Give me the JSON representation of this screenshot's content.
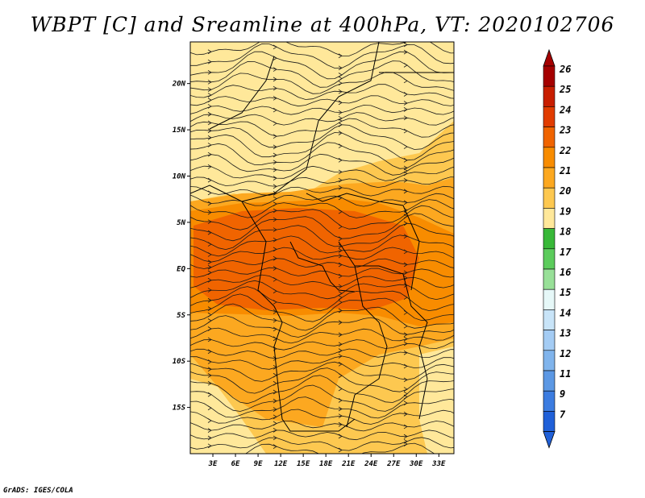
{
  "title": "WBPT [C] and Sreamline at 400hPa, VT: 2020102706",
  "credit": "GrADS: IGES/COLA",
  "map": {
    "lat_ticks": [
      "20N",
      "15N",
      "10N",
      "5N",
      "EQ",
      "5S",
      "10S",
      "15S"
    ],
    "lat_values": [
      20,
      15,
      10,
      5,
      0,
      -5,
      -10,
      -15
    ],
    "lon_ticks": [
      "3E",
      "6E",
      "9E",
      "12E",
      "15E",
      "18E",
      "21E",
      "24E",
      "27E",
      "30E",
      "33E"
    ],
    "lon_values": [
      3,
      6,
      9,
      12,
      15,
      18,
      21,
      24,
      27,
      30,
      33
    ],
    "lat_range": [
      -20,
      24.5
    ],
    "lon_range": [
      0,
      35
    ]
  },
  "colorbar": {
    "labels": [
      "26",
      "25",
      "24",
      "23",
      "22",
      "21",
      "20",
      "19",
      "18",
      "17",
      "16",
      "15",
      "14",
      "13",
      "12",
      "11",
      "9",
      "7"
    ],
    "colors": [
      "#a50000",
      "#c81e00",
      "#e13c00",
      "#f06400",
      "#f88c00",
      "#fca820",
      "#fdc850",
      "#ffe89a",
      "#38b838",
      "#5ccc5c",
      "#98e098",
      "#e6f8f8",
      "#c8e4f8",
      "#a4ccf4",
      "#80b4ec",
      "#5c98e4",
      "#3c7ce0",
      "#2060d8"
    ],
    "top_arrow_color": "#a50000",
    "bottom_arrow_color": "#2060d8"
  }
}
